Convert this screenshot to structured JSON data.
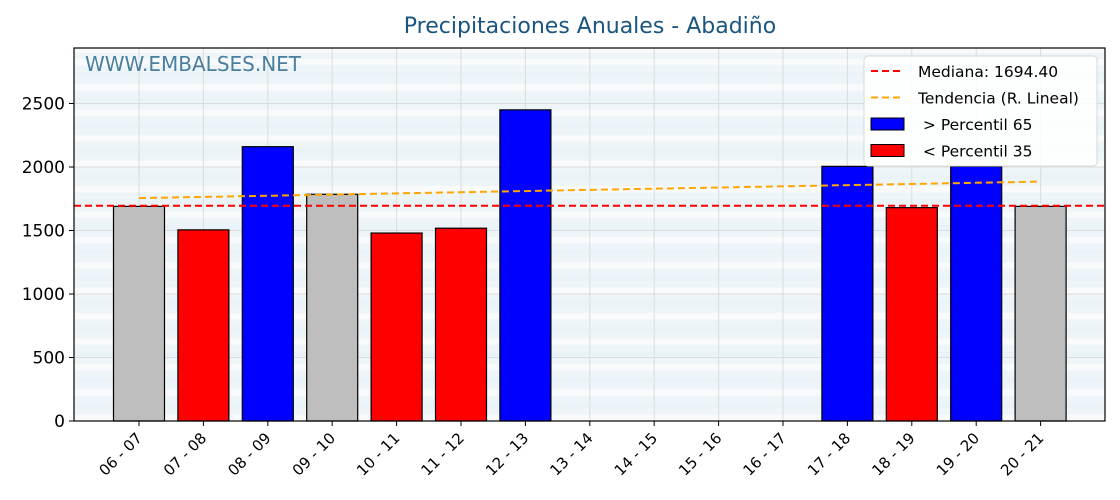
{
  "chart_data": {
    "type": "bar",
    "title": "Precipitaciones Anuales - Abadiño",
    "watermark": "WWW.EMBALSES.NET",
    "xlabel": "",
    "ylabel": "",
    "ylim": [
      0,
      2900
    ],
    "yticks": [
      0,
      500,
      1000,
      1500,
      2000,
      2500
    ],
    "grid": true,
    "legend_position": "upper right",
    "categories": [
      "06 - 07",
      "07 - 08",
      "08 - 09",
      "09 - 10",
      "10 - 11",
      "11 - 12",
      "12 - 13",
      "13 - 14",
      "14 - 15",
      "15 - 16",
      "16 - 17",
      "17 - 18",
      "18 - 19",
      "19 - 20",
      "20 - 21"
    ],
    "values": [
      1690,
      1505,
      2160,
      1785,
      1480,
      1518,
      2450,
      null,
      null,
      null,
      null,
      2005,
      1680,
      2005,
      1690
    ],
    "bar_classes": [
      "neutral",
      "low",
      "high",
      "neutral",
      "low",
      "low",
      "high",
      null,
      null,
      null,
      null,
      "high",
      "low",
      "high",
      "neutral"
    ],
    "colors": {
      "high": "#0000ff",
      "low": "#ff0000",
      "neutral": "#bebebe",
      "median": "#ff0000",
      "trend": "#ffa500"
    },
    "median": {
      "value": 1694.4,
      "label": "Mediana: 1694.40"
    },
    "trend": {
      "label": "Tendencia (R. Lineal)",
      "start": {
        "category": "06 - 07",
        "value": 1755
      },
      "end": {
        "category": "20 - 21",
        "value": 1885
      }
    },
    "legend": [
      {
        "type": "line",
        "style": "dashed",
        "color": "#ff0000",
        "label": "Mediana: 1694.40"
      },
      {
        "type": "line",
        "style": "dashed",
        "color": "#ffa500",
        "label": "Tendencia (R. Lineal)"
      },
      {
        "type": "patch",
        "color": "#0000ff",
        "label": " > Percentil 65"
      },
      {
        "type": "patch",
        "color": "#ff0000",
        "label": " < Percentil 35"
      }
    ]
  }
}
